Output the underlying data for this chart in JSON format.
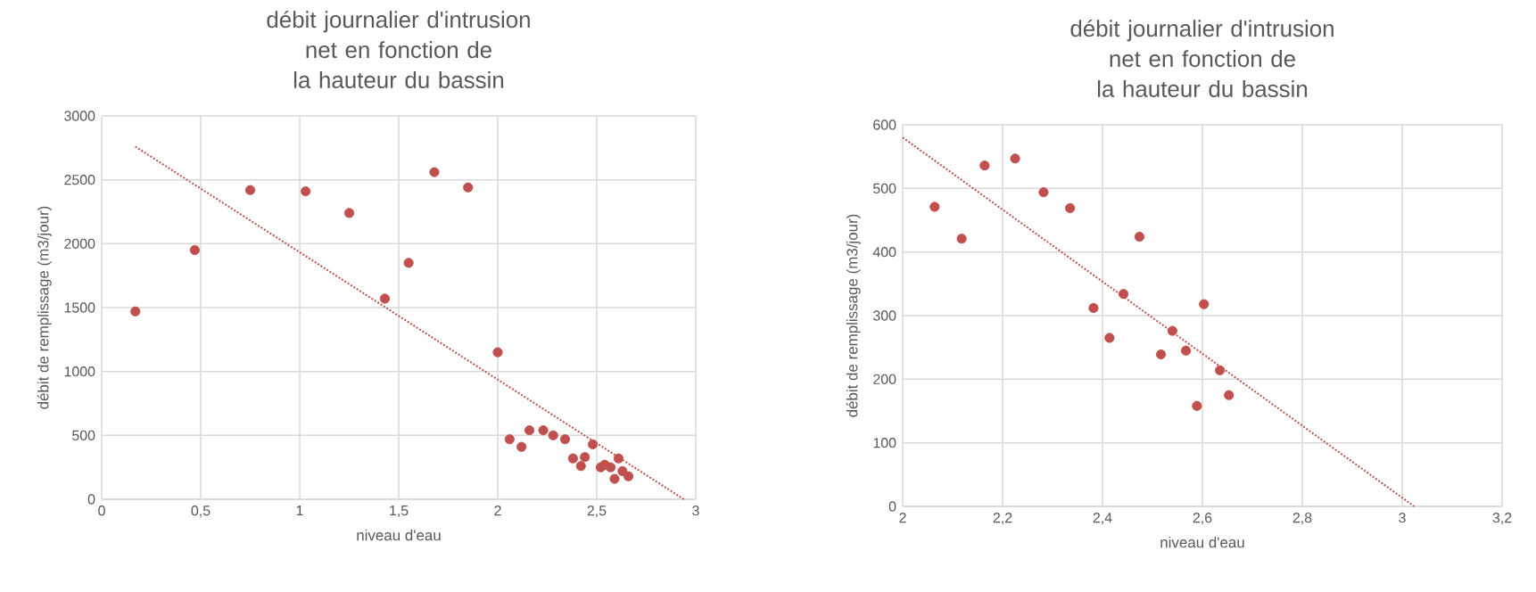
{
  "chart_data": [
    {
      "type": "scatter",
      "title": "débit journalier d'intrusion net en fonction de la hauteur du bassin",
      "xlabel": "niveau d'eau",
      "ylabel": "débit de remplissage (m3/jour)",
      "xlim": [
        0,
        3
      ],
      "ylim": [
        0,
        3000
      ],
      "xticks": [
        0,
        {
          "value": 0.5,
          "label": "0,5"
        },
        1,
        {
          "value": 1.5,
          "label": "1,5"
        },
        2,
        {
          "value": 2.5,
          "label": "2,5"
        },
        3
      ],
      "yticks": [
        0,
        500,
        1000,
        1500,
        2000,
        2500,
        3000
      ],
      "grid": true,
      "series": [
        {
          "color": "#c0504d",
          "marker": "circle",
          "x": [
            0.17,
            0.47,
            0.75,
            1.03,
            1.25,
            1.43,
            1.55,
            1.68,
            1.85,
            2.0,
            2.06,
            2.12,
            2.16,
            2.23,
            2.28,
            2.34,
            2.38,
            2.42,
            2.44,
            2.48,
            2.52,
            2.54,
            2.57,
            2.59,
            2.61,
            2.63,
            2.66
          ],
          "values": [
            1470,
            1950,
            2420,
            2410,
            2240,
            1570,
            1850,
            2560,
            2440,
            1150,
            470,
            410,
            540,
            540,
            500,
            470,
            320,
            260,
            330,
            430,
            250,
            270,
            250,
            160,
            320,
            220,
            180
          ]
        },
        {
          "type": "line",
          "color": "#c0504d",
          "marker": "none",
          "line_style": "dotted",
          "x": [
            0.17,
            2.94
          ],
          "values": [
            2760,
            0
          ]
        }
      ]
    },
    {
      "type": "scatter",
      "title": "débit journalier d'intrusion net en fonction de la hauteur du bassin",
      "xlabel": "niveau d'eau",
      "ylabel": "débit de remplissage (m3/jour)",
      "xlim": [
        2,
        3.2
      ],
      "ylim": [
        0,
        600
      ],
      "xticks": [
        2,
        {
          "value": 2.2,
          "label": "2,2"
        },
        {
          "value": 2.4,
          "label": "2,4"
        },
        {
          "value": 2.6,
          "label": "2,6"
        },
        {
          "value": 2.8,
          "label": "2,8"
        },
        3,
        {
          "value": 3.2,
          "label": "3,2"
        }
      ],
      "yticks": [
        0,
        100,
        200,
        300,
        400,
        500,
        600
      ],
      "grid": true,
      "series": [
        {
          "color": "#c0504d",
          "marker": "circle",
          "x": [
            2.064,
            2.118,
            2.164,
            2.225,
            2.282,
            2.335,
            2.382,
            2.414,
            2.442,
            2.474,
            2.517,
            2.54,
            2.567,
            2.589,
            2.603,
            2.635,
            2.653
          ],
          "values": [
            471,
            421,
            536,
            547,
            494,
            469,
            312,
            265,
            334,
            424,
            239,
            276,
            245,
            158,
            318,
            214,
            175
          ]
        },
        {
          "type": "line",
          "color": "#c0504d",
          "marker": "none",
          "line_style": "dotted",
          "x": [
            2.0,
            3.024
          ],
          "values": [
            580,
            0
          ]
        }
      ]
    }
  ]
}
